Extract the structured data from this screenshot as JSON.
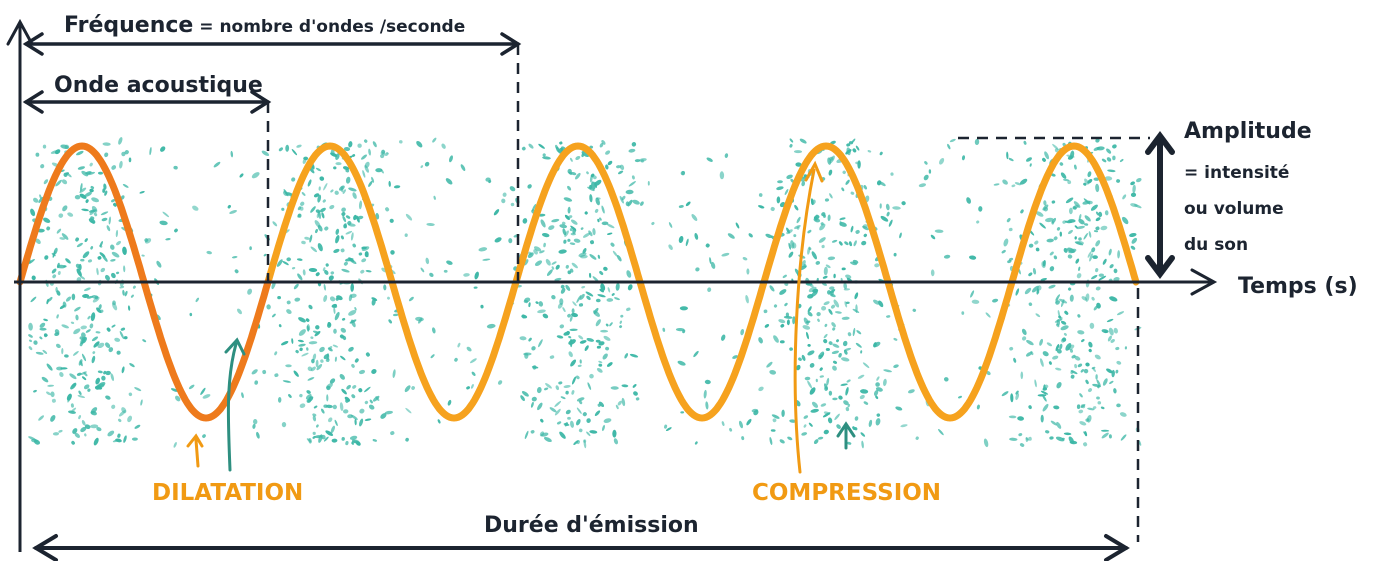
{
  "labels": {
    "frequence_title": "Fréquence",
    "frequence_def": " = nombre d'ondes /seconde",
    "onde_acoustique": "Onde acoustique",
    "amplitude": "Amplitude",
    "amplitude_def_1": "= intensité",
    "amplitude_def_2": "ou volume",
    "amplitude_def_3": "du son",
    "temps_axis": "Temps (s)",
    "dilatation": "DILATATION",
    "compression": "COMPRESSION",
    "duree_emission": "Durée d'émission"
  },
  "colors": {
    "wave_first_cycle": "#ee7a1c",
    "wave": "#f6a21e",
    "particles": "#3cb7a6",
    "particle_arrow": "#2e8f80",
    "ink": "#1c2430",
    "label_orange": "#f19a13"
  },
  "wave": {
    "cycles": 4.5,
    "highlighted_cycles": 1
  },
  "icons": {
    "vertical_axis": "arrow-up-icon",
    "time_axis": "arrow-right-icon",
    "amplitude": "double-arrow-vertical-icon",
    "frequence": "double-arrow-horizontal-icon",
    "duree": "double-arrow-horizontal-icon"
  }
}
